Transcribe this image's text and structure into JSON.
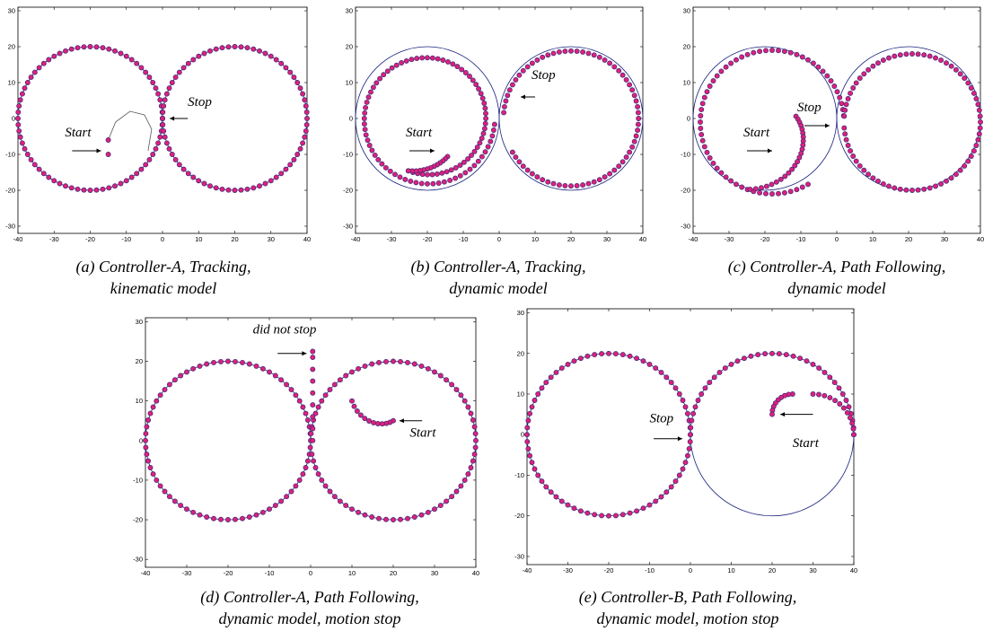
{
  "colors": {
    "reference_path": "#1a237e",
    "marker_fill": "#e0207a",
    "marker_edge": "#3a2a7a",
    "frame": "#000000"
  },
  "chart_data": [
    {
      "id": "a",
      "type": "scatter",
      "caption_line1": "(a) Controller-A, Tracking,",
      "caption_line2": "kinematic model",
      "xlim": [
        -40,
        40
      ],
      "ylim": [
        -32,
        31
      ],
      "xticks": [
        -40,
        -30,
        -20,
        -10,
        0,
        10,
        20,
        30,
        40
      ],
      "yticks": [
        -30,
        -20,
        -10,
        0,
        10,
        20,
        30
      ],
      "reference": "figure-eight: circle center (-20,0) r=20 and circle center (20,0) r=20",
      "series": [
        {
          "kind": "circle_arc",
          "cx": -20,
          "cy": 0,
          "r": 20,
          "start_deg": 0,
          "end_deg": 360,
          "step_deg": 5
        },
        {
          "kind": "circle_arc",
          "cx": 20,
          "cy": 0,
          "r": 20,
          "start_deg": 180,
          "end_deg": 540,
          "step_deg": 5
        },
        {
          "kind": "points",
          "values": [
            [
              -15,
              -6
            ],
            [
              -15,
              -10
            ]
          ]
        }
      ],
      "extra_curve": [
        [
          -15,
          -6
        ],
        [
          -13,
          -1
        ],
        [
          -9,
          2
        ],
        [
          -5,
          1
        ],
        [
          -3,
          -3
        ],
        [
          -4,
          -9
        ]
      ],
      "annotations": [
        {
          "text": "Start",
          "x": -27,
          "y": -5,
          "arrow_from": [
            -25,
            -9
          ],
          "arrow_to": [
            -17,
            -9
          ]
        },
        {
          "text": "Stop",
          "x": 7,
          "y": 3.5,
          "arrow_from": [
            7,
            0
          ],
          "arrow_to": [
            2,
            0
          ]
        }
      ]
    },
    {
      "id": "b",
      "type": "scatter",
      "caption_line1": "(b) Controller-A, Tracking,",
      "caption_line2": "dynamic model",
      "xlim": [
        -40,
        40
      ],
      "ylim": [
        -32,
        31
      ],
      "xticks": [
        -40,
        -30,
        -20,
        -10,
        0,
        10,
        20,
        30,
        40
      ],
      "yticks": [
        -30,
        -20,
        -10,
        0,
        10,
        20,
        30
      ],
      "series": [
        {
          "kind": "spiral",
          "cx": -20,
          "cy": 0,
          "r0": 15.5,
          "r1": 18.8,
          "start_deg": -110,
          "end_deg": 355,
          "step_deg": 5
        },
        {
          "kind": "spiral",
          "cx": 20,
          "cy": 0,
          "r0": 18.8,
          "r1": 18.8,
          "start_deg": 175,
          "end_deg": -150,
          "step_deg": -5
        },
        {
          "kind": "spiral",
          "cx": -20,
          "cy": 0,
          "r0": 12,
          "r1": 15.5,
          "start_deg": -62,
          "end_deg": -110,
          "step_deg": -4
        }
      ],
      "annotations": [
        {
          "text": "Start",
          "x": -26,
          "y": -5,
          "arrow_from": [
            -25,
            -9
          ],
          "arrow_to": [
            -18,
            -9
          ]
        },
        {
          "text": "Stop",
          "x": 9,
          "y": 11,
          "arrow_from": [
            10,
            6
          ],
          "arrow_to": [
            6,
            6
          ]
        }
      ]
    },
    {
      "id": "c",
      "type": "scatter",
      "caption_line1": "(c) Controller-A, Path Following,",
      "caption_line2": "dynamic model",
      "xlim": [
        -40,
        40
      ],
      "ylim": [
        -32,
        31
      ],
      "xticks": [
        -40,
        -30,
        -20,
        -10,
        0,
        10,
        20,
        30,
        40
      ],
      "yticks": [
        -30,
        -20,
        -10,
        0,
        10,
        20,
        30
      ],
      "series": [
        {
          "kind": "spiral",
          "cx": -18,
          "cy": -1,
          "r0": 20,
          "r1": 20,
          "start_deg": -60,
          "end_deg": -355,
          "step_deg": -5
        },
        {
          "kind": "spiral",
          "cx": 21,
          "cy": -1,
          "r0": 19,
          "r1": 19,
          "start_deg": 175,
          "end_deg": -175,
          "step_deg": -5
        },
        {
          "kind": "spiral",
          "cx": -21,
          "cy": -2,
          "r0": 10,
          "r1": 18,
          "start_deg": 15,
          "end_deg": -100,
          "step_deg": -5
        }
      ],
      "annotations": [
        {
          "text": "Start",
          "x": -26,
          "y": -5,
          "arrow_from": [
            -25,
            -9
          ],
          "arrow_to": [
            -18,
            -9
          ]
        },
        {
          "text": "Stop",
          "x": -11,
          "y": 2,
          "arrow_from": [
            -9,
            -2
          ],
          "arrow_to": [
            -2,
            -2
          ]
        }
      ]
    },
    {
      "id": "d",
      "type": "scatter",
      "caption_line1": "(d) Controller-A, Path Following,",
      "caption_line2": "dynamic model, motion stop",
      "xlim": [
        -40,
        40
      ],
      "ylim": [
        -32,
        31
      ],
      "xticks": [
        -40,
        -30,
        -20,
        -10,
        0,
        10,
        20,
        30,
        40
      ],
      "yticks": [
        -30,
        -20,
        -10,
        0,
        10,
        20,
        30
      ],
      "series": [
        {
          "kind": "spiral",
          "cx": -20,
          "cy": 0,
          "r0": 20,
          "r1": 20,
          "start_deg": -5,
          "end_deg": -355,
          "step_deg": -5
        },
        {
          "kind": "spiral",
          "cx": 20,
          "cy": 0,
          "r0": 20,
          "r1": 20,
          "start_deg": 180,
          "end_deg": -170,
          "step_deg": -5
        },
        {
          "kind": "spiral",
          "cx": 20,
          "cy": 10,
          "r0": 5,
          "r1": 10,
          "start_deg": -90,
          "end_deg": -180,
          "step_deg": -8
        },
        {
          "kind": "points",
          "values": [
            [
              0.5,
              0
            ],
            [
              0.5,
              3
            ],
            [
              0.5,
              6
            ],
            [
              0.5,
              9
            ],
            [
              0.5,
              12
            ],
            [
              0.5,
              15
            ],
            [
              0.5,
              18
            ],
            [
              0.5,
              21
            ],
            [
              0.5,
              22.5
            ]
          ]
        }
      ],
      "annotations": [
        {
          "text": "did not stop",
          "x": -14,
          "y": 27,
          "arrow_from": [
            -8,
            22
          ],
          "arrow_to": [
            -1,
            22
          ]
        },
        {
          "text": "Start",
          "x": 24,
          "y": 1,
          "arrow_from": [
            27,
            5
          ],
          "arrow_to": [
            21.5,
            5
          ]
        }
      ]
    },
    {
      "id": "e",
      "type": "scatter",
      "caption_line1": "(e) Controller-B, Path Following,",
      "caption_line2": "dynamic model, motion stop",
      "xlim": [
        -40,
        40
      ],
      "ylim": [
        -32,
        31
      ],
      "xticks": [
        -40,
        -30,
        -20,
        -10,
        0,
        10,
        20,
        30,
        40
      ],
      "yticks": [
        -30,
        -20,
        -10,
        0,
        10,
        20,
        30
      ],
      "series": [
        {
          "kind": "spiral",
          "cx": -20,
          "cy": 0,
          "r0": 20,
          "r1": 20,
          "start_deg": 5,
          "end_deg": 360,
          "step_deg": 5
        },
        {
          "kind": "spiral",
          "cx": 20,
          "cy": 0,
          "r0": 20,
          "r1": 20,
          "start_deg": 180,
          "end_deg": 0,
          "step_deg": 5
        },
        {
          "kind": "spiral",
          "cx": 30,
          "cy": 0,
          "r0": 10,
          "r1": 10,
          "start_deg": 0,
          "end_deg": 90,
          "step_deg": 8
        },
        {
          "kind": "spiral",
          "cx": 25,
          "cy": 5,
          "r0": 5,
          "r1": 5,
          "start_deg": 90,
          "end_deg": 180,
          "step_deg": 12
        }
      ],
      "annotations": [
        {
          "text": "Stop",
          "x": -10,
          "y": 3,
          "arrow_from": [
            -9,
            -1
          ],
          "arrow_to": [
            -2,
            -1
          ]
        },
        {
          "text": "Start",
          "x": 25,
          "y": -3,
          "arrow_from": [
            30,
            5
          ],
          "arrow_to": [
            22,
            5
          ]
        }
      ]
    }
  ]
}
